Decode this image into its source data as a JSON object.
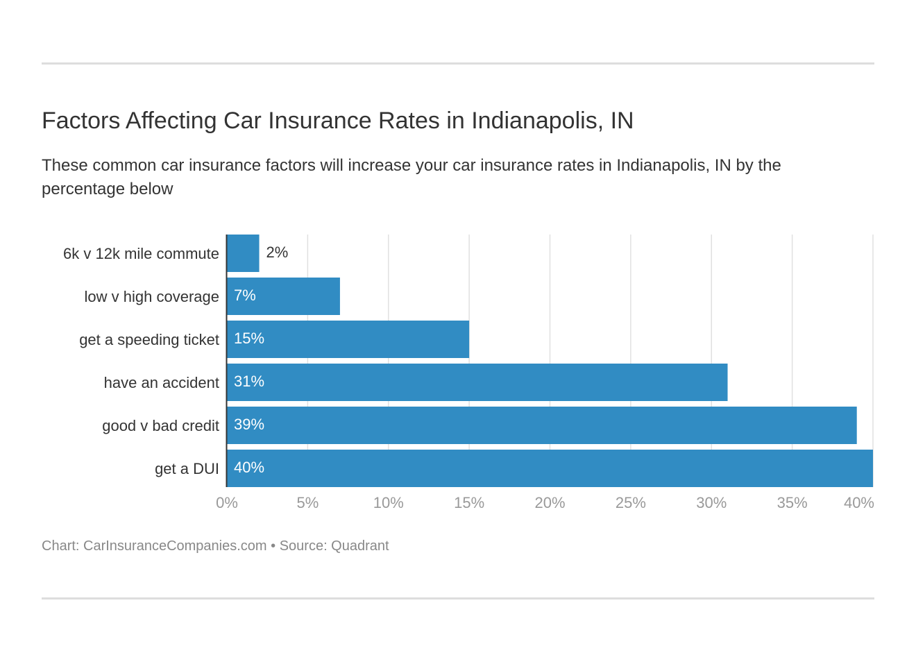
{
  "title": "Factors Affecting Car Insurance Rates in Indianapolis, IN",
  "subtitle": "These common car insurance factors will increase your car insurance rates in Indianapolis, IN by the percentage below",
  "footer": "Chart: CarInsuranceCompanies.com • Source: Quadrant",
  "chart_data": {
    "type": "bar",
    "orientation": "horizontal",
    "categories": [
      "6k v 12k mile commute",
      "low v high coverage",
      "get a speeding ticket",
      "have an accident",
      "good v bad credit",
      "get a DUI"
    ],
    "values": [
      2,
      7,
      15,
      31,
      39,
      40
    ],
    "data_labels": [
      "2%",
      "7%",
      "15%",
      "31%",
      "39%",
      "40%"
    ],
    "xlim": [
      0,
      40
    ],
    "x_ticks": [
      0,
      5,
      10,
      15,
      20,
      25,
      30,
      35,
      40
    ],
    "x_tick_labels": [
      "0%",
      "5%",
      "10%",
      "15%",
      "20%",
      "25%",
      "30%",
      "35%",
      "40%"
    ],
    "grid": true,
    "colors": {
      "bar": "#318cc3",
      "grid": "#e0e0e0",
      "axis": "#333333",
      "tick_label": "#999999"
    }
  }
}
